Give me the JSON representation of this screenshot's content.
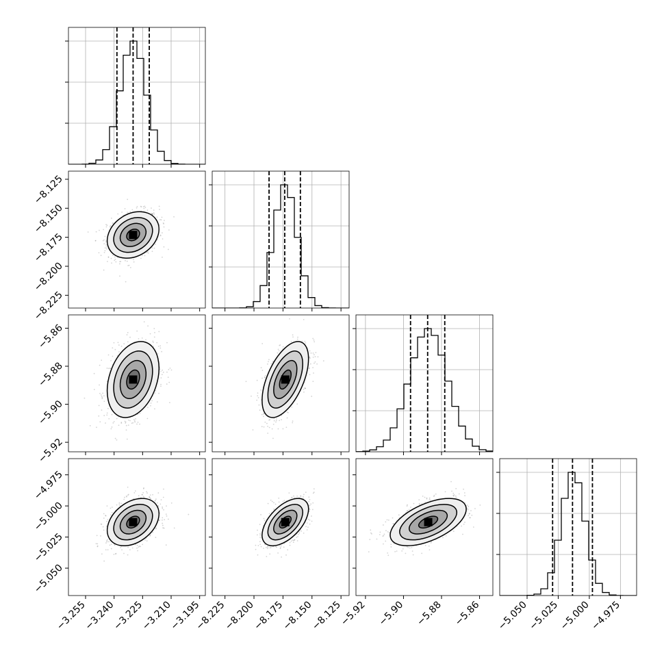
{
  "chart_data": {
    "type": "corner",
    "parameters": 4,
    "x_ticks": [
      [
        "−3.255",
        "−3.240",
        "−3.225",
        "−3.210",
        "−3.195"
      ],
      [
        "−8.225",
        "−8.200",
        "−8.175",
        "−8.150",
        "−8.125"
      ],
      [
        "−5.92",
        "−5.90",
        "−5.88",
        "−5.86"
      ],
      [
        "−5.050",
        "−5.025",
        "−5.000",
        "−4.975"
      ]
    ],
    "x_tick_values": [
      [
        -3.255,
        -3.24,
        -3.225,
        -3.21,
        -3.195
      ],
      [
        -8.225,
        -8.2,
        -8.175,
        -8.15,
        -8.125
      ],
      [
        -5.92,
        -5.9,
        -5.88,
        -5.86
      ],
      [
        -5.05,
        -5.025,
        -5.0,
        -4.975
      ]
    ],
    "y_ticks": [
      [],
      [
        "−8.125",
        "−8.150",
        "−8.175",
        "−8.200",
        "−8.225"
      ],
      [
        "−5.86",
        "−5.88",
        "−5.90",
        "−5.92"
      ],
      [
        "−4.975",
        "−5.000",
        "−5.025",
        "−5.050"
      ]
    ],
    "y_tick_values": [
      [],
      [
        -8.125,
        -8.15,
        -8.175,
        -8.2,
        -8.225
      ],
      [
        -5.86,
        -5.88,
        -5.9,
        -5.92
      ],
      [
        -4.975,
        -5.0,
        -5.025,
        -5.05
      ]
    ],
    "ranges": [
      [
        -3.264,
        -3.192
      ],
      [
        -8.236,
        -8.118
      ],
      [
        -5.925,
        -5.853
      ],
      [
        -5.072,
        -4.962
      ]
    ],
    "means": [
      -3.23,
      -8.173,
      -5.887,
      -5.013
    ],
    "sigmas": [
      0.0068,
      0.01,
      0.01,
      0.0095
    ],
    "quantiles_16_50_84": [
      [
        -3.2385,
        -3.23,
        -3.2215
      ],
      [
        -8.187,
        -8.1735,
        -8.16
      ],
      [
        -5.8963,
        -5.8873,
        -5.8783
      ],
      [
        -5.0295,
        -5.0135,
        -4.9975
      ]
    ],
    "correlations": {
      "1-0": 0.25,
      "2-0": 0.3,
      "2-1": 0.55,
      "3-0": 0.35,
      "3-1": 0.55,
      "3-2": 0.55
    },
    "grid": true
  }
}
